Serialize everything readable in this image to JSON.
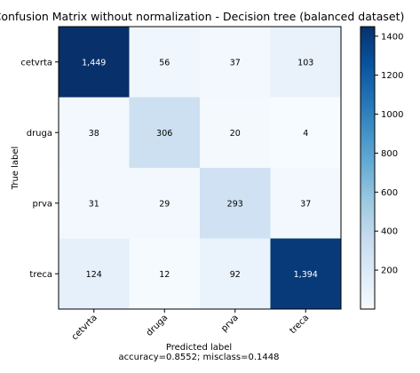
{
  "chart_data": {
    "type": "heatmap",
    "title": "Confusion Matrix without normalization - Decision tree (balanced dataset)",
    "ylabel": "True label",
    "xlabel": "Predicted label",
    "footer": "accuracy=0.8552; misclass=0.1448",
    "row_labels": [
      "cetvrta",
      "druga",
      "prva",
      "treca"
    ],
    "col_labels": [
      "cetvrta",
      "druga",
      "prva",
      "treca"
    ],
    "values": [
      [
        1449,
        56,
        37,
        103
      ],
      [
        38,
        306,
        20,
        4
      ],
      [
        31,
        29,
        293,
        37
      ],
      [
        124,
        12,
        92,
        1394
      ]
    ],
    "cell_labels": [
      [
        "1,449",
        "56",
        "37",
        "103"
      ],
      [
        "38",
        "306",
        "20",
        "4"
      ],
      [
        "31",
        "29",
        "293",
        "37"
      ],
      [
        "124",
        "12",
        "92",
        "1,394"
      ]
    ],
    "colorbar": {
      "range": [
        0,
        1449
      ],
      "ticks": [
        200,
        400,
        600,
        800,
        1000,
        1200,
        1400
      ],
      "tick_labels": [
        "200",
        "400",
        "600",
        "800",
        "1000",
        "1200",
        "1400"
      ],
      "colormap": "Blues"
    },
    "colors": {
      "low": "#f7fbff",
      "high": "#08306b",
      "text_dark": "#000000",
      "text_light": "#ffffff"
    }
  }
}
